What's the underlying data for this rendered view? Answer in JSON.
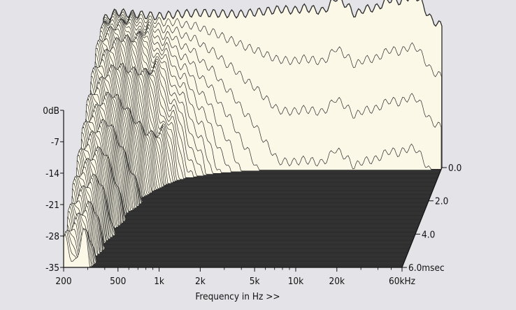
{
  "chart_data": {
    "type": "waterfall",
    "title": "",
    "xlabel": "Frequency in Hz >>",
    "x_scale": "log",
    "x_ticks": [
      "200",
      "500",
      "1k",
      "2k",
      "5k",
      "10k",
      "20k",
      "60kHz"
    ],
    "x_tick_values": [
      200,
      500,
      1000,
      2000,
      5000,
      10000,
      20000,
      60000
    ],
    "y_ticks": [
      "0dB",
      "-7",
      "-14",
      "-21",
      "-28",
      "-35"
    ],
    "y_tick_values": [
      0,
      -7,
      -14,
      -21,
      -28,
      -35
    ],
    "ylim": [
      -35,
      0
    ],
    "z_ticks": [
      "0.0",
      "2.0",
      "4.0",
      "6.0msec"
    ],
    "z_tick_values": [
      0.0,
      2.0,
      4.0,
      6.0
    ],
    "time_range_msec": [
      0,
      6.0
    ],
    "colors": {
      "background": "#e4e4e8",
      "floor": "#3b3b3b",
      "surface": "#fbf8e7",
      "trace": "#2a2a2a"
    },
    "initial_response_db": {
      "freq_hz": [
        200,
        250,
        300,
        400,
        500,
        700,
        1000,
        1500,
        2000,
        3000,
        4000,
        5000,
        6000,
        7000,
        8000,
        9000,
        10000,
        12000,
        14000,
        16000,
        20000,
        25000,
        30000,
        35000,
        40000,
        50000,
        60000
      ],
      "db": [
        -2.0,
        -0.3,
        -0.7,
        -1.0,
        -1.3,
        -0.8,
        -0.5,
        -0.7,
        -0.8,
        -0.2,
        0.3,
        0.0,
        0.6,
        0.2,
        -0.2,
        1.0,
        3.0,
        1.3,
        -1.0,
        0.3,
        0.6,
        2.6,
        2.0,
        3.3,
        3.0,
        -2.0,
        -3.5
      ]
    }
  }
}
